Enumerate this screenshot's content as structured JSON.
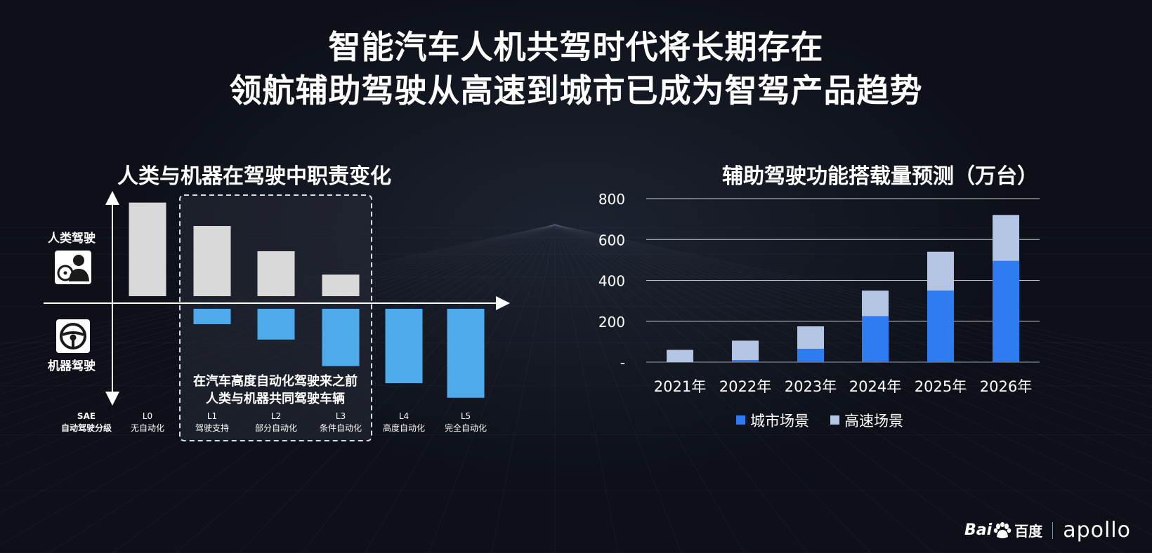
{
  "page": {
    "title_line1": "智能汽车人机共驾时代将长期存在",
    "title_line2": "领航辅助驾驶从高速到城市已成为智驾产品趋势"
  },
  "left_chart": {
    "subtitle": "人类与机器在驾驶中职责变化",
    "human_label": "人类驾驶",
    "machine_label": "机器驾驶",
    "icons": [
      "human-driver-icon",
      "steering-wheel-icon"
    ],
    "sae_label_line1": "SAE",
    "sae_label_line2": "自动驾驶分级",
    "callout_line1": "在汽车高度自动化驾驶来之前",
    "callout_line2": "人类与机器共同驾驶车辆",
    "colors": {
      "human": "#d9d9d9",
      "machine": "#4eaaea"
    }
  },
  "right_chart": {
    "subtitle": "辅助驾驶功能搭载量预测（万台）",
    "legend": [
      {
        "name": "城市场景",
        "color": "#2e7cf0"
      },
      {
        "name": "高速场景",
        "color": "#b4c5e4"
      }
    ]
  },
  "brand": {
    "baidu": "Bai",
    "baidu_cn": "百度",
    "apollo": "apollo"
  },
  "chart_data": [
    {
      "type": "bar",
      "categories": [
        "L0",
        "L1",
        "L2",
        "L3",
        "L4",
        "L5"
      ],
      "category_sublabels": [
        "无自动化",
        "驾驶支持",
        "部分自动化",
        "条件自动化",
        "高度自动化",
        "完全自动化"
      ],
      "series": [
        {
          "name": "人类驾驶",
          "values": [
            1.0,
            0.75,
            0.48,
            0.23,
            0,
            0
          ]
        },
        {
          "name": "机器驾驶",
          "values": [
            0,
            0.18,
            0.36,
            0.67,
            0.87,
            1.04
          ]
        }
      ],
      "title": "人类与机器在驾驶中职责变化",
      "ylim": [
        0,
        1.05
      ],
      "grid": false
    },
    {
      "type": "bar",
      "stacked": true,
      "categories": [
        "2021年",
        "2022年",
        "2023年",
        "2024年",
        "2025年",
        "2026年"
      ],
      "series": [
        {
          "name": "城市场景",
          "values": [
            0,
            10,
            65,
            225,
            350,
            495
          ]
        },
        {
          "name": "高速场景",
          "values": [
            60,
            95,
            110,
            125,
            190,
            225
          ]
        }
      ],
      "title": "辅助驾驶功能搭载量预测（万台）",
      "yticks": [
        "-",
        "200",
        "400",
        "600",
        "800"
      ],
      "ylim": [
        0,
        800
      ],
      "grid": true,
      "legend": "bottom"
    }
  ]
}
